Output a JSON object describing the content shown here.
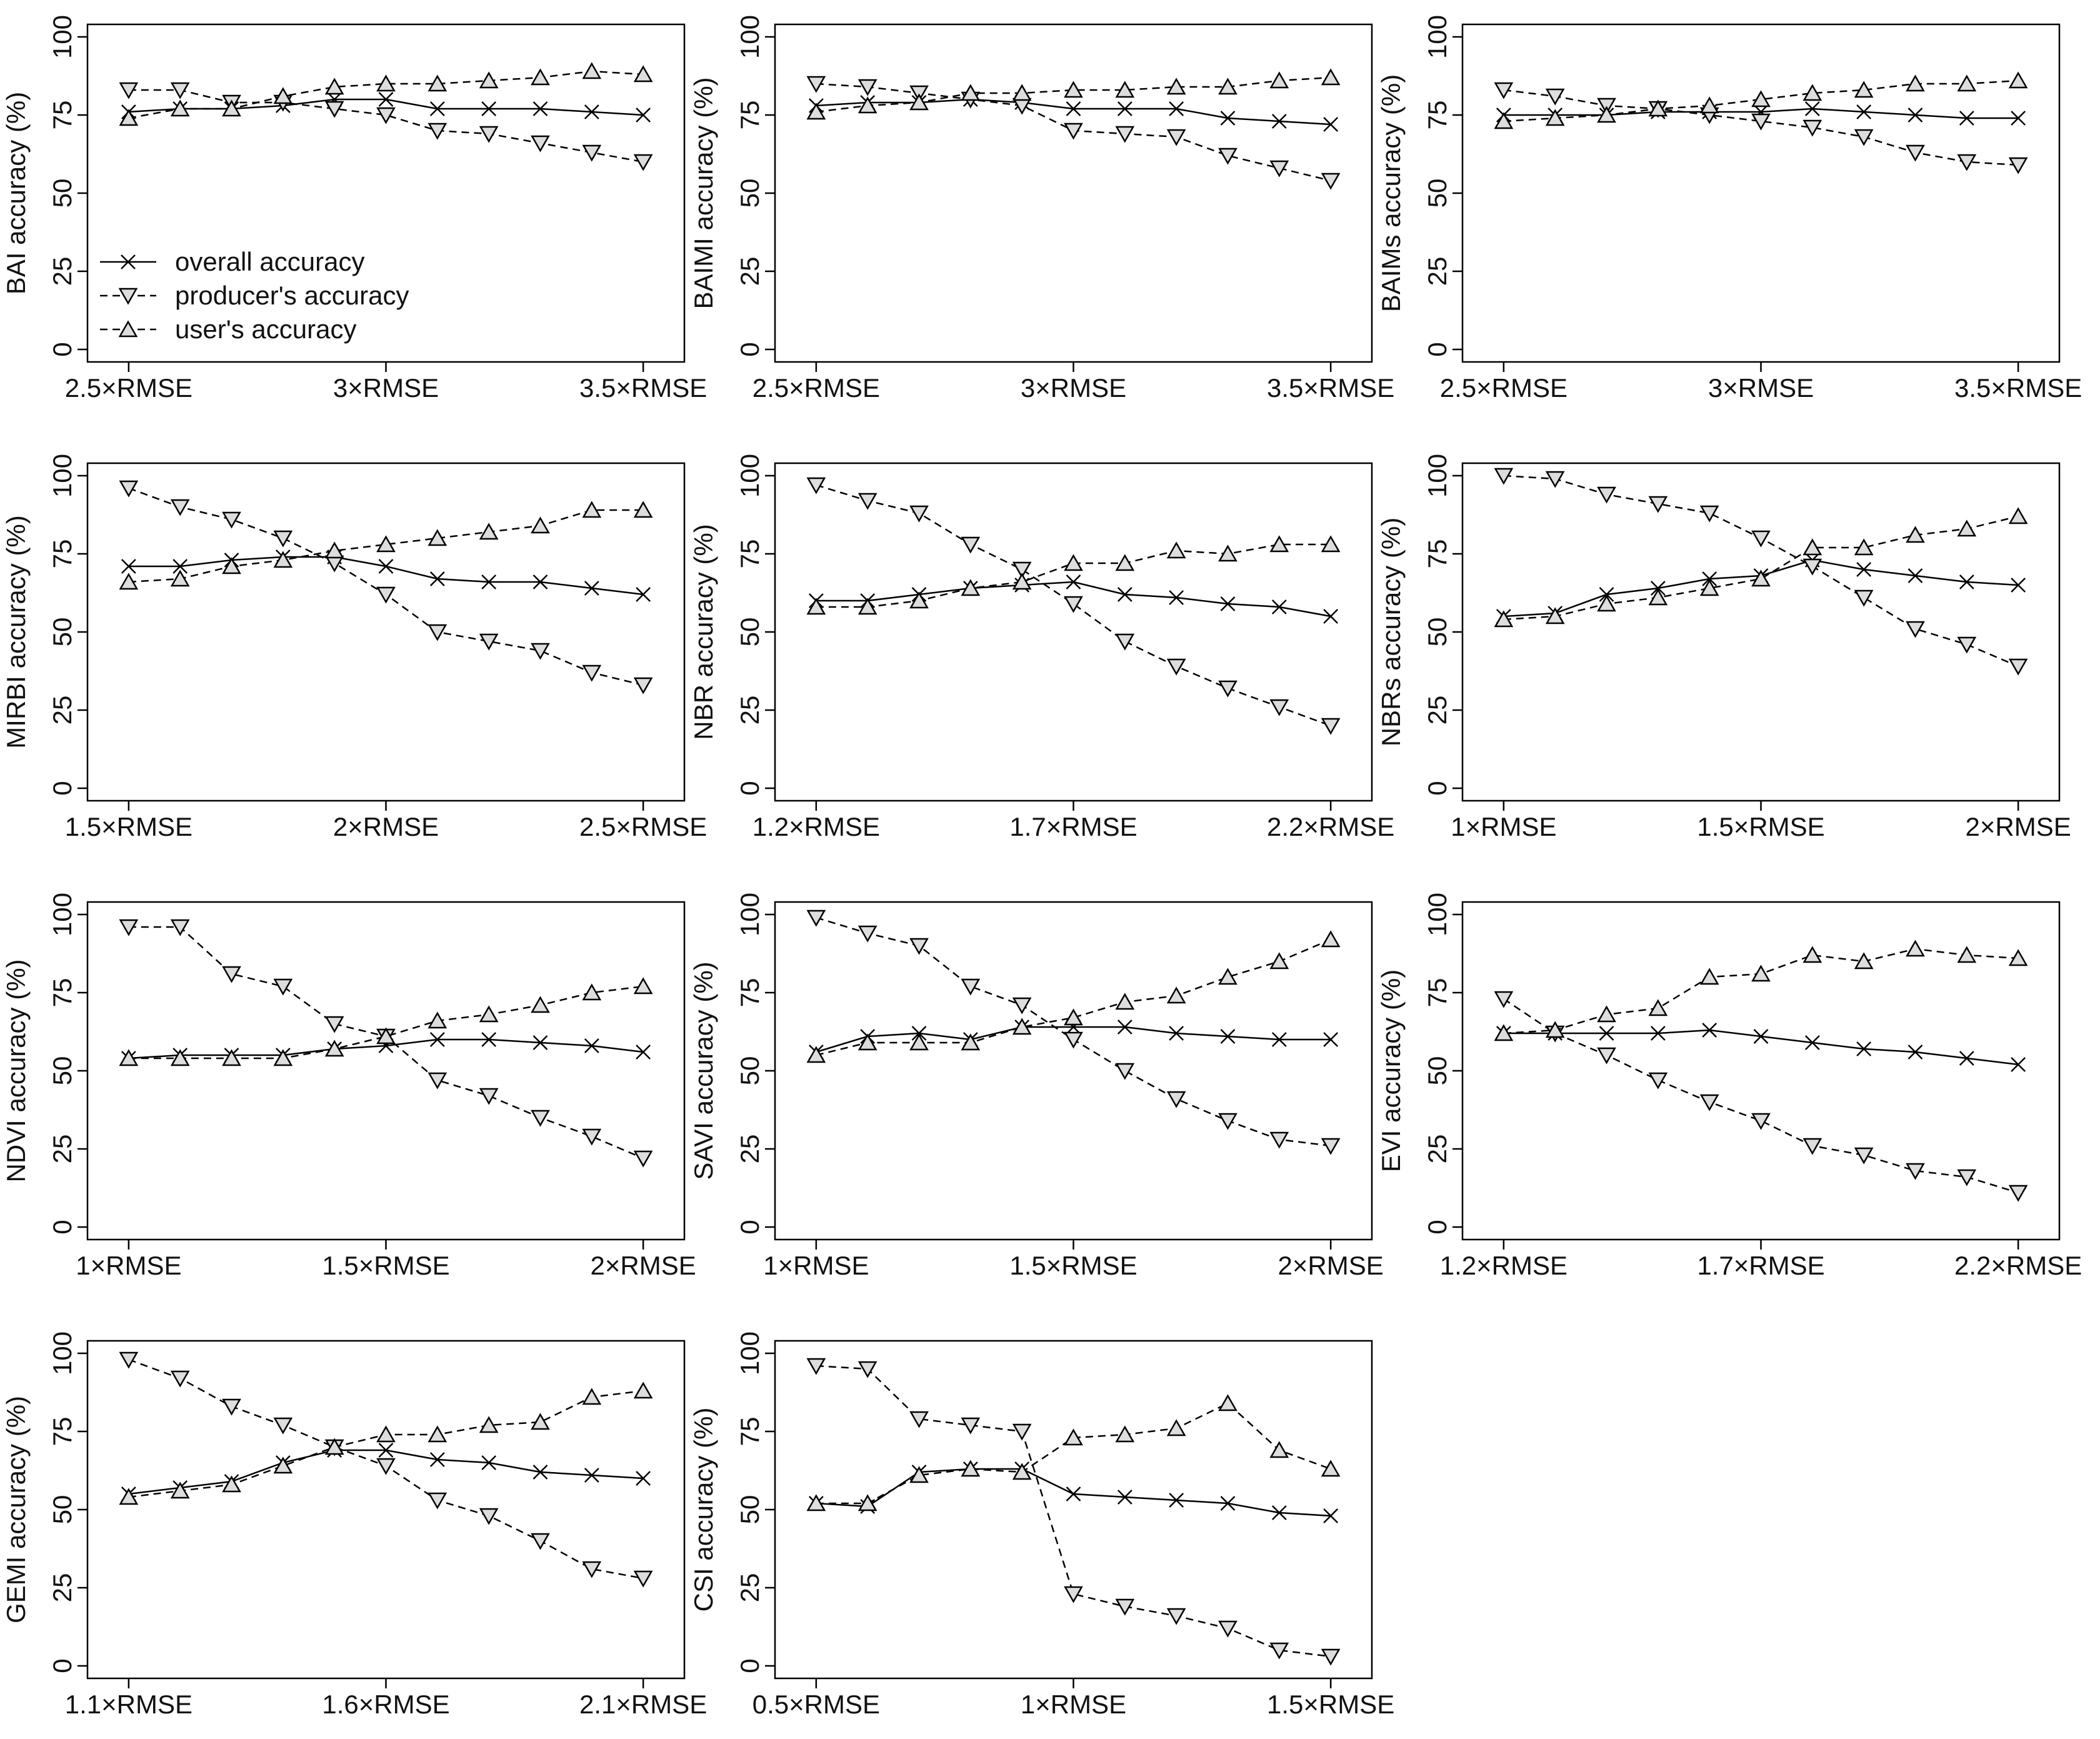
{
  "chart_data": [
    {
      "type": "line",
      "ylabel": "BAI accuracy (%)",
      "legend": "bottomleft",
      "x": [
        2.5,
        2.6,
        2.7,
        2.8,
        2.9,
        3.0,
        3.1,
        3.2,
        3.3,
        3.4,
        3.5
      ],
      "xlim": [
        2.42,
        3.58
      ],
      "xticks": [
        {
          "value": 2.5,
          "label": "2.5×RMSE"
        },
        {
          "value": 3,
          "label": "3×RMSE"
        },
        {
          "value": 3.5,
          "label": "3.5×RMSE"
        }
      ],
      "ylim": [
        -4,
        104
      ],
      "yticks": [
        0,
        25,
        50,
        75,
        100
      ],
      "series": [
        {
          "name": "overall accuracy",
          "marker": "cross",
          "dashed": false,
          "color": "#000",
          "values": [
            76,
            77,
            77,
            78,
            80,
            80,
            77,
            77,
            77,
            76,
            75
          ]
        },
        {
          "name": "producer's accuracy",
          "marker": "down",
          "dashed": true,
          "color": "#000",
          "values": [
            83,
            83,
            79,
            79,
            77,
            75,
            70,
            69,
            66,
            63,
            60
          ]
        },
        {
          "name": "user's accuracy",
          "marker": "up",
          "dashed": true,
          "color": "#000",
          "values": [
            74,
            77,
            77,
            81,
            84,
            85,
            85,
            86,
            87,
            89,
            88
          ]
        }
      ]
    },
    {
      "type": "line",
      "ylabel": "BAIMI accuracy (%)",
      "x": [
        2.5,
        2.6,
        2.7,
        2.8,
        2.9,
        3.0,
        3.1,
        3.2,
        3.3,
        3.4,
        3.5
      ],
      "xlim": [
        2.42,
        3.58
      ],
      "xticks": [
        {
          "value": 2.5,
          "label": "2.5×RMSE"
        },
        {
          "value": 3,
          "label": "3×RMSE"
        },
        {
          "value": 3.5,
          "label": "3.5×RMSE"
        }
      ],
      "ylim": [
        -4,
        104
      ],
      "yticks": [
        0,
        25,
        50,
        75,
        100
      ],
      "series": [
        {
          "marker": "cross",
          "dashed": false,
          "color": "#000",
          "values": [
            78,
            79,
            79,
            80,
            79,
            77,
            77,
            77,
            74,
            73,
            72
          ]
        },
        {
          "marker": "down",
          "dashed": true,
          "color": "#000",
          "values": [
            85,
            84,
            82,
            80,
            78,
            70,
            69,
            68,
            62,
            58,
            54
          ]
        },
        {
          "marker": "up",
          "dashed": true,
          "color": "#000",
          "values": [
            76,
            78,
            79,
            82,
            82,
            83,
            83,
            84,
            84,
            86,
            87
          ]
        }
      ]
    },
    {
      "type": "line",
      "ylabel": "BAIMs accuracy (%)",
      "x": [
        2.5,
        2.6,
        2.7,
        2.8,
        2.9,
        3.0,
        3.1,
        3.2,
        3.3,
        3.4,
        3.5
      ],
      "xlim": [
        2.42,
        3.58
      ],
      "xticks": [
        {
          "value": 2.5,
          "label": "2.5×RMSE"
        },
        {
          "value": 3,
          "label": "3×RMSE"
        },
        {
          "value": 3.5,
          "label": "3.5×RMSE"
        }
      ],
      "ylim": [
        -4,
        104
      ],
      "yticks": [
        0,
        25,
        50,
        75,
        100
      ],
      "series": [
        {
          "marker": "cross",
          "dashed": false,
          "color": "#000",
          "values": [
            75,
            75,
            75,
            76,
            76,
            76,
            77,
            76,
            75,
            74,
            74
          ]
        },
        {
          "marker": "down",
          "dashed": true,
          "color": "#000",
          "values": [
            83,
            81,
            78,
            77,
            75,
            73,
            71,
            68,
            63,
            60,
            59
          ]
        },
        {
          "marker": "up",
          "dashed": true,
          "color": "#000",
          "values": [
            73,
            74,
            75,
            77,
            78,
            80,
            82,
            83,
            85,
            85,
            86
          ]
        }
      ]
    },
    {
      "type": "line",
      "ylabel": "MIRBI accuracy (%)",
      "x": [
        1.5,
        1.6,
        1.7,
        1.8,
        1.9,
        2.0,
        2.1,
        2.2,
        2.3,
        2.4,
        2.5
      ],
      "xlim": [
        1.42,
        2.58
      ],
      "xticks": [
        {
          "value": 1.5,
          "label": "1.5×RMSE"
        },
        {
          "value": 2,
          "label": "2×RMSE"
        },
        {
          "value": 2.5,
          "label": "2.5×RMSE"
        }
      ],
      "ylim": [
        -4,
        104
      ],
      "yticks": [
        0,
        25,
        50,
        75,
        100
      ],
      "series": [
        {
          "marker": "cross",
          "dashed": false,
          "color": "#000",
          "values": [
            71,
            71,
            73,
            74,
            74,
            71,
            67,
            66,
            66,
            64,
            62
          ]
        },
        {
          "marker": "down",
          "dashed": true,
          "color": "#000",
          "values": [
            96,
            90,
            86,
            80,
            72,
            62,
            50,
            47,
            44,
            37,
            33
          ]
        },
        {
          "marker": "up",
          "dashed": true,
          "color": "#000",
          "values": [
            66,
            67,
            71,
            73,
            76,
            78,
            80,
            82,
            84,
            89,
            89
          ]
        }
      ]
    },
    {
      "type": "line",
      "ylabel": "NBR accuracy (%)",
      "x": [
        1.2,
        1.3,
        1.4,
        1.5,
        1.6,
        1.7,
        1.8,
        1.9,
        2.0,
        2.1,
        2.2
      ],
      "xlim": [
        1.12,
        2.28
      ],
      "xticks": [
        {
          "value": 1.2,
          "label": "1.2×RMSE"
        },
        {
          "value": 1.7,
          "label": "1.7×RMSE"
        },
        {
          "value": 2.2,
          "label": "2.2×RMSE"
        }
      ],
      "ylim": [
        -4,
        104
      ],
      "yticks": [
        0,
        25,
        50,
        75,
        100
      ],
      "series": [
        {
          "marker": "cross",
          "dashed": false,
          "color": "#000",
          "values": [
            60,
            60,
            62,
            64,
            65,
            66,
            62,
            61,
            59,
            58,
            55
          ]
        },
        {
          "marker": "down",
          "dashed": true,
          "color": "#000",
          "values": [
            97,
            92,
            88,
            78,
            70,
            59,
            47,
            39,
            32,
            26,
            20
          ]
        },
        {
          "marker": "up",
          "dashed": true,
          "color": "#000",
          "values": [
            58,
            58,
            60,
            64,
            66,
            72,
            72,
            76,
            75,
            78,
            78
          ]
        }
      ]
    },
    {
      "type": "line",
      "ylabel": "NBRs accuracy (%)",
      "x": [
        1.0,
        1.1,
        1.2,
        1.3,
        1.4,
        1.5,
        1.6,
        1.7,
        1.8,
        1.9,
        2.0
      ],
      "xlim": [
        0.92,
        2.08
      ],
      "xticks": [
        {
          "value": 1,
          "label": "1×RMSE"
        },
        {
          "value": 1.5,
          "label": "1.5×RMSE"
        },
        {
          "value": 2,
          "label": "2×RMSE"
        }
      ],
      "ylim": [
        -4,
        104
      ],
      "yticks": [
        0,
        25,
        50,
        75,
        100
      ],
      "series": [
        {
          "marker": "cross",
          "dashed": false,
          "color": "#000",
          "values": [
            55,
            56,
            62,
            64,
            67,
            68,
            73,
            70,
            68,
            66,
            65
          ]
        },
        {
          "marker": "down",
          "dashed": true,
          "color": "#000",
          "values": [
            100,
            99,
            94,
            91,
            88,
            80,
            71,
            61,
            51,
            46,
            39
          ]
        },
        {
          "marker": "up",
          "dashed": true,
          "color": "#000",
          "values": [
            54,
            55,
            59,
            61,
            64,
            67,
            77,
            77,
            81,
            83,
            87
          ]
        }
      ]
    },
    {
      "type": "line",
      "ylabel": "NDVI accuracy (%)",
      "x": [
        1.0,
        1.1,
        1.2,
        1.3,
        1.4,
        1.5,
        1.6,
        1.7,
        1.8,
        1.9,
        2.0
      ],
      "xlim": [
        0.92,
        2.08
      ],
      "xticks": [
        {
          "value": 1,
          "label": "1×RMSE"
        },
        {
          "value": 1.5,
          "label": "1.5×RMSE"
        },
        {
          "value": 2,
          "label": "2×RMSE"
        }
      ],
      "ylim": [
        -4,
        104
      ],
      "yticks": [
        0,
        25,
        50,
        75,
        100
      ],
      "series": [
        {
          "marker": "cross",
          "dashed": false,
          "color": "#000",
          "values": [
            54,
            55,
            55,
            55,
            57,
            58,
            60,
            60,
            59,
            58,
            56
          ]
        },
        {
          "marker": "down",
          "dashed": true,
          "color": "#000",
          "values": [
            96,
            96,
            81,
            77,
            65,
            61,
            47,
            42,
            35,
            29,
            22
          ]
        },
        {
          "marker": "up",
          "dashed": true,
          "color": "#000",
          "values": [
            54,
            54,
            54,
            54,
            57,
            61,
            66,
            68,
            71,
            75,
            77
          ]
        }
      ]
    },
    {
      "type": "line",
      "ylabel": "SAVI accuracy (%)",
      "x": [
        1.0,
        1.1,
        1.2,
        1.3,
        1.4,
        1.5,
        1.6,
        1.7,
        1.8,
        1.9,
        2.0
      ],
      "xlim": [
        0.92,
        2.08
      ],
      "xticks": [
        {
          "value": 1,
          "label": "1×RMSE"
        },
        {
          "value": 1.5,
          "label": "1.5×RMSE"
        },
        {
          "value": 2,
          "label": "2×RMSE"
        }
      ],
      "ylim": [
        -4,
        104
      ],
      "yticks": [
        0,
        25,
        50,
        75,
        100
      ],
      "series": [
        {
          "marker": "cross",
          "dashed": false,
          "color": "#000",
          "values": [
            56,
            61,
            62,
            60,
            64,
            64,
            64,
            62,
            61,
            60,
            60
          ]
        },
        {
          "marker": "down",
          "dashed": true,
          "color": "#000",
          "values": [
            99,
            94,
            90,
            77,
            71,
            60,
            50,
            41,
            34,
            28,
            26
          ]
        },
        {
          "marker": "up",
          "dashed": true,
          "color": "#000",
          "values": [
            55,
            59,
            59,
            59,
            64,
            67,
            72,
            74,
            80,
            85,
            92
          ]
        }
      ]
    },
    {
      "type": "line",
      "ylabel": "EVI accuracy (%)",
      "x": [
        1.2,
        1.3,
        1.4,
        1.5,
        1.6,
        1.7,
        1.8,
        1.9,
        2.0,
        2.1,
        2.2
      ],
      "xlim": [
        1.12,
        2.28
      ],
      "xticks": [
        {
          "value": 1.2,
          "label": "1.2×RMSE"
        },
        {
          "value": 1.7,
          "label": "1.7×RMSE"
        },
        {
          "value": 2.2,
          "label": "2.2×RMSE"
        }
      ],
      "ylim": [
        -4,
        104
      ],
      "yticks": [
        0,
        25,
        50,
        75,
        100
      ],
      "series": [
        {
          "marker": "cross",
          "dashed": false,
          "color": "#000",
          "values": [
            62,
            62,
            62,
            62,
            63,
            61,
            59,
            57,
            56,
            54,
            52
          ]
        },
        {
          "marker": "down",
          "dashed": true,
          "color": "#000",
          "values": [
            73,
            62,
            55,
            47,
            40,
            34,
            26,
            23,
            18,
            16,
            11
          ]
        },
        {
          "marker": "up",
          "dashed": true,
          "color": "#000",
          "values": [
            62,
            63,
            68,
            70,
            80,
            81,
            87,
            85,
            89,
            87,
            86
          ]
        }
      ]
    },
    {
      "type": "line",
      "ylabel": "GEMI accuracy (%)",
      "x": [
        1.1,
        1.2,
        1.3,
        1.4,
        1.5,
        1.6,
        1.7,
        1.8,
        1.9,
        2.0,
        2.1
      ],
      "xlim": [
        1.02,
        2.18
      ],
      "xticks": [
        {
          "value": 1.1,
          "label": "1.1×RMSE"
        },
        {
          "value": 1.6,
          "label": "1.6×RMSE"
        },
        {
          "value": 2.1,
          "label": "2.1×RMSE"
        }
      ],
      "ylim": [
        -4,
        104
      ],
      "yticks": [
        0,
        25,
        50,
        75,
        100
      ],
      "series": [
        {
          "marker": "cross",
          "dashed": false,
          "color": "#000",
          "values": [
            55,
            57,
            59,
            65,
            69,
            69,
            66,
            65,
            62,
            61,
            60
          ]
        },
        {
          "marker": "down",
          "dashed": true,
          "color": "#000",
          "values": [
            98,
            92,
            83,
            77,
            70,
            64,
            53,
            48,
            40,
            31,
            28
          ]
        },
        {
          "marker": "up",
          "dashed": true,
          "color": "#000",
          "values": [
            54,
            56,
            58,
            64,
            70,
            74,
            74,
            77,
            78,
            86,
            88
          ]
        }
      ]
    },
    {
      "type": "line",
      "ylabel": "CSI accuracy (%)",
      "x": [
        0.5,
        0.6,
        0.7,
        0.8,
        0.9,
        1.0,
        1.1,
        1.2,
        1.3,
        1.4,
        1.5
      ],
      "xlim": [
        0.42,
        1.58
      ],
      "xticks": [
        {
          "value": 0.5,
          "label": "0.5×RMSE"
        },
        {
          "value": 1,
          "label": "1×RMSE"
        },
        {
          "value": 1.5,
          "label": "1.5×RMSE"
        }
      ],
      "ylim": [
        -4,
        104
      ],
      "yticks": [
        0,
        25,
        50,
        75,
        100
      ],
      "series": [
        {
          "marker": "cross",
          "dashed": false,
          "color": "#000",
          "values": [
            52,
            51,
            62,
            63,
            63,
            55,
            54,
            53,
            52,
            49,
            48
          ]
        },
        {
          "marker": "down",
          "dashed": true,
          "color": "#000",
          "values": [
            96,
            95,
            79,
            77,
            75,
            23,
            19,
            16,
            12,
            5,
            3
          ]
        },
        {
          "marker": "up",
          "dashed": true,
          "color": "#000",
          "values": [
            52,
            52,
            61,
            63,
            62,
            73,
            74,
            76,
            84,
            69,
            63
          ]
        }
      ]
    }
  ]
}
